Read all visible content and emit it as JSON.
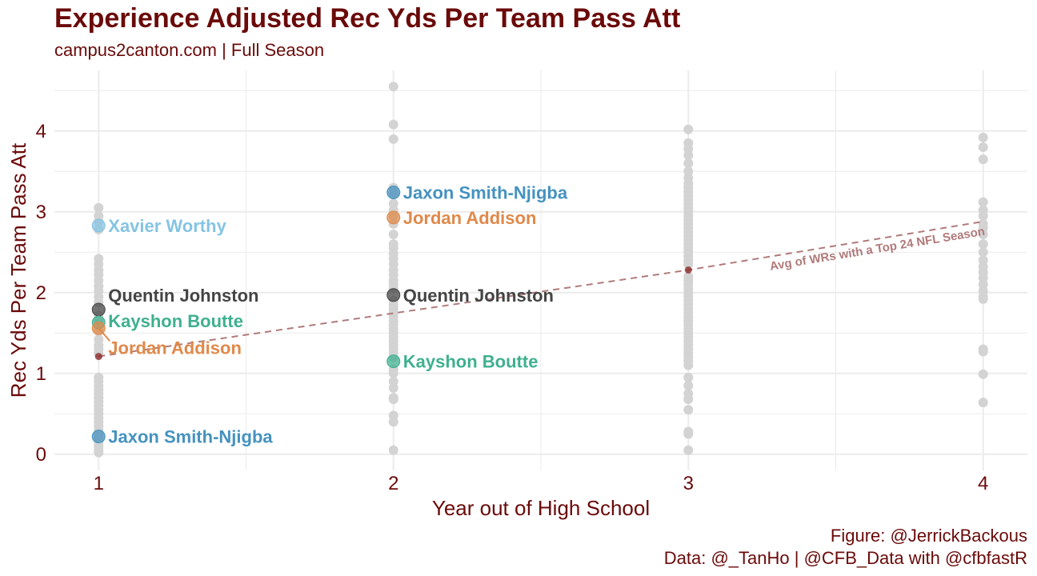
{
  "header": {
    "title": "Experience Adjusted Rec Yds Per Team Pass Att",
    "subtitle": "campus2canton.com | Full Season"
  },
  "caption": {
    "line1": "Figure: @JerrickBackous",
    "line2": "Data: @_TanHo | @CFB_Data with @cfbfastR"
  },
  "chart_data": {
    "type": "scatter",
    "title": "Experience Adjusted Rec Yds Per Team Pass Att",
    "subtitle": "campus2canton.com | Full Season",
    "xlabel": "Year out of High School",
    "ylabel": "Rec Yds Per Team Pass Att",
    "xlim": [
      0.85,
      4.15
    ],
    "ylim": [
      -0.2,
      4.75
    ],
    "xticks": [
      1,
      2,
      3,
      4
    ],
    "yticks": [
      0,
      1,
      2,
      3,
      4
    ],
    "grid": true,
    "background_points": [
      {
        "x": 1,
        "values": [
          3.05,
          2.95,
          2.88,
          2.78,
          2.42,
          2.35,
          2.28,
          2.22,
          2.15,
          2.08,
          2.02,
          1.95,
          1.88,
          1.72,
          1.66,
          1.52,
          1.42,
          1.35,
          1.3,
          1.25,
          0.95,
          0.9,
          0.85,
          0.8,
          0.75,
          0.7,
          0.65,
          0.6,
          0.55,
          0.5,
          0.45,
          0.4,
          0.35,
          0.3,
          0.25,
          0.2,
          0.15,
          0.1,
          0.05,
          0.02
        ]
      },
      {
        "x": 2,
        "values": [
          4.55,
          4.08,
          3.9,
          3.3,
          3.22,
          3.1,
          3.02,
          2.95,
          2.85,
          2.72,
          2.6,
          2.55,
          2.48,
          2.42,
          2.35,
          2.28,
          2.22,
          2.15,
          2.1,
          2.05,
          1.9,
          1.85,
          1.8,
          1.75,
          1.7,
          1.65,
          1.6,
          1.55,
          1.5,
          1.45,
          1.4,
          1.35,
          1.3,
          1.25,
          1.2,
          1.05,
          1.0,
          0.9,
          0.82,
          0.7,
          0.68,
          0.48,
          0.4,
          0.05
        ]
      },
      {
        "x": 3,
        "values": [
          4.02,
          3.85,
          3.78,
          3.7,
          3.6,
          3.5,
          3.42,
          3.35,
          3.3,
          3.25,
          3.2,
          3.15,
          3.1,
          3.05,
          3.0,
          2.95,
          2.9,
          2.85,
          2.8,
          2.75,
          2.7,
          2.65,
          2.6,
          2.55,
          2.5,
          2.45,
          2.4,
          2.35,
          2.2,
          2.15,
          2.1,
          2.05,
          2.0,
          1.95,
          1.9,
          1.85,
          1.8,
          1.75,
          1.7,
          1.65,
          1.6,
          1.55,
          1.5,
          1.45,
          1.4,
          1.35,
          1.3,
          1.25,
          1.2,
          1.15,
          1.1,
          0.95,
          0.85,
          0.75,
          0.68,
          0.55,
          0.28,
          0.25,
          0.05
        ]
      },
      {
        "x": 4,
        "values": [
          3.92,
          3.8,
          3.65,
          3.12,
          3.02,
          2.95,
          2.85,
          2.8,
          2.72,
          2.6,
          2.5,
          2.4,
          2.32,
          2.25,
          2.18,
          2.1,
          2.02,
          1.95,
          1.92,
          1.3,
          1.27,
          0.99,
          0.64
        ]
      }
    ],
    "average_line": {
      "label": "Avg of WRs with a Top 24 NFL Season",
      "points": [
        [
          1,
          1.21
        ],
        [
          3,
          2.28
        ],
        [
          4,
          2.88
        ]
      ],
      "color": "#b07a7a"
    },
    "highlight_players": [
      {
        "name": "Xavier Worthy",
        "color": "#85c4e3",
        "points": [
          [
            1,
            2.83
          ]
        ]
      },
      {
        "name": "Quentin Johnston",
        "color": "#444444",
        "points": [
          [
            1,
            1.79
          ],
          [
            2,
            1.97
          ]
        ]
      },
      {
        "name": "Kayshon Boutte",
        "color": "#3fb08f",
        "points": [
          [
            1,
            1.63
          ],
          [
            2,
            1.15
          ]
        ]
      },
      {
        "name": "Jordan Addison",
        "color": "#e0894a",
        "points": [
          [
            1,
            1.56
          ],
          [
            2,
            2.93
          ]
        ]
      },
      {
        "name": "Jaxon Smith-Njigba",
        "color": "#4592bf",
        "points": [
          [
            1,
            0.22
          ],
          [
            2,
            3.24
          ]
        ]
      }
    ],
    "point_labels": [
      {
        "text": "Xavier Worthy",
        "x": 1,
        "y": 2.83,
        "dy": 0.0,
        "color": "#85c4e3"
      },
      {
        "text": "Quentin Johnston",
        "x": 1,
        "y": 1.79,
        "dy": 0.18,
        "color": "#444444"
      },
      {
        "text": "Kayshon Boutte",
        "x": 1,
        "y": 1.63,
        "dy": 0.02,
        "color": "#3fb08f"
      },
      {
        "text": "Jordan Addison",
        "x": 1,
        "y": 1.56,
        "dy": -0.24,
        "color": "#e0894a"
      },
      {
        "text": "Jaxon Smith-Njigba",
        "x": 1,
        "y": 0.22,
        "dy": 0.0,
        "color": "#4592bf"
      },
      {
        "text": "Jaxon Smith-Njigba",
        "x": 2,
        "y": 3.24,
        "dy": 0.0,
        "color": "#4592bf"
      },
      {
        "text": "Jordan Addison",
        "x": 2,
        "y": 2.93,
        "dy": 0.0,
        "color": "#e0894a"
      },
      {
        "text": "Quentin Johnston",
        "x": 2,
        "y": 1.97,
        "dy": 0.0,
        "color": "#444444"
      },
      {
        "text": "Kayshon Boutte",
        "x": 2,
        "y": 1.15,
        "dy": 0.0,
        "color": "#3fb08f"
      }
    ],
    "colors": {
      "text": "#6b0a0a",
      "background_points": "#d3d3d3",
      "grid": "#ebebeb",
      "average_marker": "#8b2c2c"
    }
  }
}
